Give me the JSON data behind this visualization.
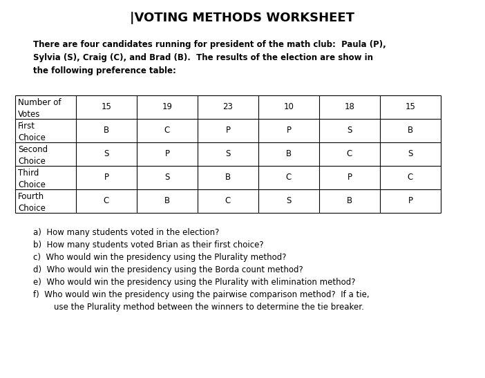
{
  "title": "|VOTING METHODS WORKSHEET",
  "intro_text": "There are four candidates running for president of the math club:  Paula (P),\nSylvia (S), Craig (C), and Brad (B).  The results of the election are show in\nthe following preference table:",
  "table": {
    "col_headers": [
      "Number of\nVotes",
      "15",
      "19",
      "23",
      "10",
      "18",
      "15"
    ],
    "rows": [
      [
        "First\nChoice",
        "B",
        "C",
        "P",
        "P",
        "S",
        "B"
      ],
      [
        "Second\nChoice",
        "S",
        "P",
        "S",
        "B",
        "C",
        "S"
      ],
      [
        "Third\nChoice",
        "P",
        "S",
        "B",
        "C",
        "P",
        "C"
      ],
      [
        "Fourth\nChoice",
        "C",
        "B",
        "C",
        "S",
        "B",
        "P"
      ]
    ]
  },
  "questions": [
    "a)  How many students voted in the election?",
    "b)  How many students voted Brian as their first choice?",
    "c)  Who would win the presidency using the Plurality method?",
    "d)  Who would win the presidency using the Borda count method?",
    "e)  Who would win the presidency using the Plurality with elimination method?",
    "f)  Who would win the presidency using the pairwise comparison method?  If a tie,\n        use the Plurality method between the winners to determine the tie breaker."
  ],
  "bg_color": "#ffffff",
  "text_color": "#000000",
  "table_line_color": "#000000",
  "title_fontsize": 13,
  "intro_fontsize": 8.5,
  "question_fontsize": 8.5,
  "table_fontsize": 8.5
}
